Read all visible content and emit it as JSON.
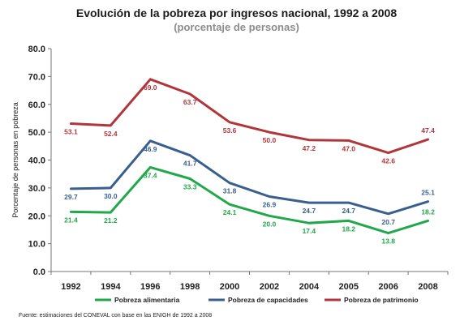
{
  "title": "Evolución de la pobreza por ingresos nacional, 1992 a 2008",
  "subtitle": "(porcentaje de personas)",
  "source": "Fuente: estimaciones del CONEVAL con base en las ENIGH de 1992 a 2008",
  "chart_data": {
    "type": "line",
    "ylabel": "Porcentaje de personas en pobreza",
    "xlabel": "",
    "ylim": [
      0,
      80
    ],
    "yticks": [
      "0.0",
      "10.0",
      "20.0",
      "30.0",
      "40.0",
      "50.0",
      "60.0",
      "70.0",
      "80.0"
    ],
    "categories": [
      "1992",
      "1994",
      "1996",
      "1998",
      "2000",
      "2002",
      "2004",
      "2005",
      "2006",
      "2008"
    ],
    "grid": false,
    "legend": "bottom",
    "series": [
      {
        "name": "Pobreza alimentaria",
        "color": "#22a84a",
        "values": [
          21.4,
          21.2,
          37.4,
          33.3,
          24.1,
          20.0,
          17.4,
          18.2,
          13.8,
          18.2
        ],
        "labels": [
          "21.4",
          "21.2",
          "37.4",
          "33.3",
          "24.1",
          "20.0",
          "17.4",
          "18.2",
          "13.8",
          "18.2"
        ]
      },
      {
        "name": "Pobreza de capacidades",
        "color": "#3a5f8f",
        "values": [
          29.7,
          30.0,
          46.9,
          41.7,
          31.8,
          26.9,
          24.7,
          24.7,
          20.7,
          25.1
        ],
        "labels": [
          "29.7",
          "30.0",
          "46.9",
          "41.7",
          "31.8",
          "26.9",
          "24.7",
          "24.7",
          "20.7",
          "25.1"
        ]
      },
      {
        "name": "Pobreza de patrimonio",
        "color": "#b0363c",
        "values": [
          53.1,
          52.4,
          69.0,
          63.7,
          53.6,
          50.0,
          47.2,
          47.0,
          42.6,
          47.4
        ],
        "labels": [
          "53.1",
          "52.4",
          "69.0",
          "63.7",
          "53.6",
          "50.0",
          "47.2",
          "47.0",
          "42.6",
          "47.4"
        ]
      }
    ]
  }
}
